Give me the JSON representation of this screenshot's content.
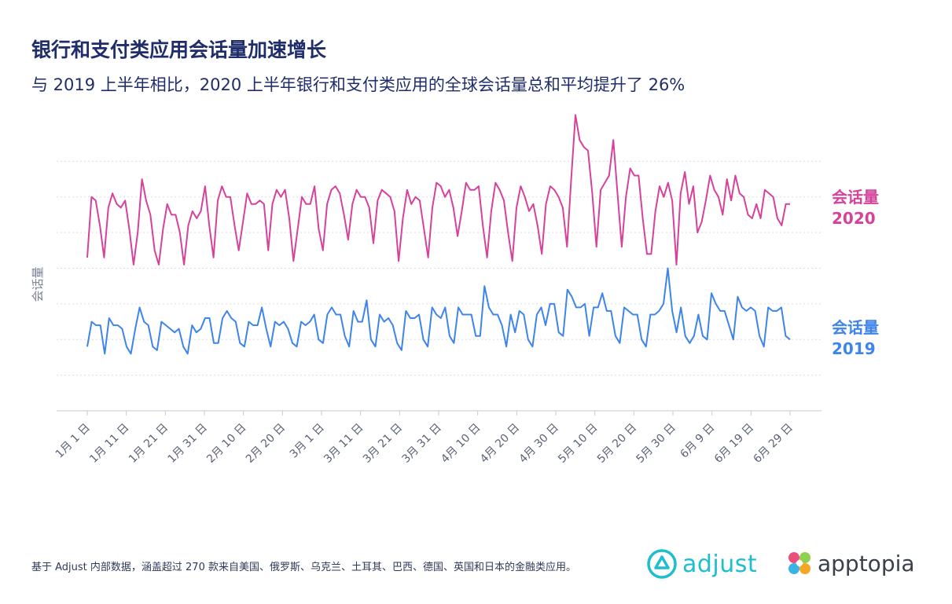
{
  "title": "银行和支付类应用会话量加速增长",
  "subtitle": "与 2019 上半年相比，2020 上半年银行和支付类应用的全球会话量总和平均提升了 26%",
  "footnote": "基于 Adjust 内部数据，涵盖超过 270 款来自美国、俄罗斯、乌克兰、土耳其、巴西、德国、英国和日本的金融类应用。",
  "logos": {
    "adjust": "adjust",
    "apptopia": "apptopia"
  },
  "colors": {
    "s2020": "#d6429b",
    "s2019": "#3d84ec",
    "grid": "#d9dce3",
    "axis_text": "#5b6275",
    "title": "#1f2d6b"
  },
  "chart_data": {
    "type": "line",
    "ylabel": "会话量",
    "xlabel": "",
    "grid": "horizontal dotted",
    "ylim": [
      0,
      8
    ],
    "x_ticks": [
      "1月 1 日",
      "1月 11 日",
      "1月 21 日",
      "1月 31 日",
      "2月 10 日",
      "2月 20 日",
      "3月 1 日",
      "3月 11 日",
      "3月 21 日",
      "3月 31 日",
      "4月 10 日",
      "4月 20 日",
      "4月 30 日",
      "5月 10 日",
      "5月 20 日",
      "5月 30 日",
      "6月 9 日",
      "6月 19 日",
      "6月 29 日"
    ],
    "series": [
      {
        "name": "会话量 2020",
        "label_lines": [
          "会话量",
          "2020"
        ],
        "values": [
          4.3,
          6.0,
          5.9,
          5.2,
          4.3,
          5.7,
          6.1,
          5.8,
          5.7,
          5.9,
          5.1,
          4.1,
          5.0,
          6.5,
          5.9,
          5.5,
          4.5,
          4.1,
          5.1,
          5.8,
          5.5,
          5.5,
          5.0,
          4.1,
          5.2,
          5.6,
          5.4,
          5.6,
          6.3,
          5.2,
          4.3,
          5.9,
          6.3,
          6.0,
          6.0,
          5.2,
          4.5,
          5.3,
          6.1,
          5.8,
          5.8,
          5.9,
          5.8,
          4.5,
          5.8,
          6.2,
          6.0,
          6.2,
          5.4,
          4.2,
          5.1,
          6.0,
          5.8,
          5.8,
          6.3,
          5.1,
          4.5,
          5.8,
          6.2,
          6.3,
          6.1,
          5.5,
          4.8,
          5.8,
          6.2,
          6.0,
          6.0,
          5.7,
          4.7,
          5.9,
          6.2,
          6.1,
          6.0,
          5.6,
          4.2,
          5.4,
          6.2,
          5.8,
          6.0,
          5.9,
          5.1,
          4.3,
          5.7,
          6.4,
          6.3,
          6.0,
          6.2,
          5.7,
          4.9,
          5.6,
          6.4,
          6.2,
          6.2,
          6.3,
          5.2,
          4.3,
          5.6,
          6.4,
          6.2,
          5.9,
          5.0,
          4.2,
          5.7,
          6.3,
          6.0,
          5.6,
          5.8,
          5.2,
          4.4,
          5.8,
          6.3,
          6.2,
          6.0,
          5.7,
          4.6,
          6.5,
          8.3,
          7.6,
          7.4,
          7.3,
          6.1,
          4.6,
          6.2,
          6.4,
          6.6,
          7.6,
          6.1,
          4.6,
          6.0,
          6.8,
          6.6,
          6.6,
          5.4,
          4.4,
          4.4,
          5.6,
          6.3,
          6.0,
          6.4,
          5.9,
          4.1,
          6.1,
          6.7,
          5.8,
          6.3,
          5.0,
          5.3,
          5.9,
          6.6,
          6.2,
          6.0,
          5.5,
          6.5,
          5.9,
          6.6,
          6.1,
          6.0,
          5.5,
          5.4,
          5.8,
          5.4,
          6.2,
          6.1,
          6.0,
          5.4,
          5.2,
          5.8,
          5.8
        ]
      },
      {
        "name": "会话量 2019",
        "label_lines": [
          "会话量",
          "2019"
        ],
        "values": [
          1.8,
          2.5,
          2.4,
          2.4,
          1.6,
          2.6,
          2.4,
          2.4,
          2.3,
          1.8,
          1.6,
          2.3,
          2.9,
          2.5,
          2.4,
          1.8,
          1.7,
          2.5,
          2.4,
          2.3,
          2.2,
          2.3,
          1.8,
          1.6,
          2.4,
          2.2,
          2.3,
          2.6,
          2.6,
          1.9,
          1.9,
          2.6,
          2.8,
          2.6,
          2.5,
          1.9,
          1.8,
          2.5,
          2.4,
          2.4,
          2.9,
          2.3,
          1.8,
          2.5,
          2.4,
          2.5,
          2.3,
          1.9,
          1.8,
          2.5,
          2.4,
          2.5,
          2.7,
          2.0,
          1.9,
          2.7,
          2.9,
          2.7,
          2.7,
          2.1,
          1.8,
          2.8,
          2.5,
          2.5,
          3.1,
          2.0,
          1.8,
          2.7,
          2.5,
          2.6,
          2.4,
          1.9,
          1.7,
          2.8,
          2.6,
          2.6,
          2.7,
          2.0,
          1.8,
          2.9,
          2.7,
          2.6,
          2.9,
          2.1,
          1.9,
          2.9,
          2.7,
          2.7,
          2.7,
          2.1,
          2.1,
          3.5,
          2.9,
          2.7,
          2.7,
          2.4,
          1.8,
          2.7,
          2.2,
          2.8,
          2.7,
          2.0,
          1.8,
          2.7,
          2.9,
          2.4,
          3.0,
          3.0,
          2.2,
          2.1,
          3.4,
          3.2,
          2.9,
          2.9,
          3.0,
          2.1,
          2.9,
          2.9,
          3.3,
          2.8,
          2.8,
          2.1,
          1.9,
          2.9,
          2.8,
          2.7,
          2.7,
          2.0,
          1.8,
          2.7,
          2.7,
          2.8,
          3.0,
          4.0,
          2.8,
          2.2,
          2.9,
          2.1,
          1.9,
          2.1,
          2.7,
          2.1,
          2.0,
          3.3,
          3.0,
          2.8,
          2.8,
          2.4,
          2.0,
          3.2,
          2.9,
          2.8,
          2.9,
          2.8,
          2.1,
          1.8,
          2.9,
          2.8,
          2.8,
          2.9,
          2.1,
          2.0
        ]
      }
    ]
  }
}
